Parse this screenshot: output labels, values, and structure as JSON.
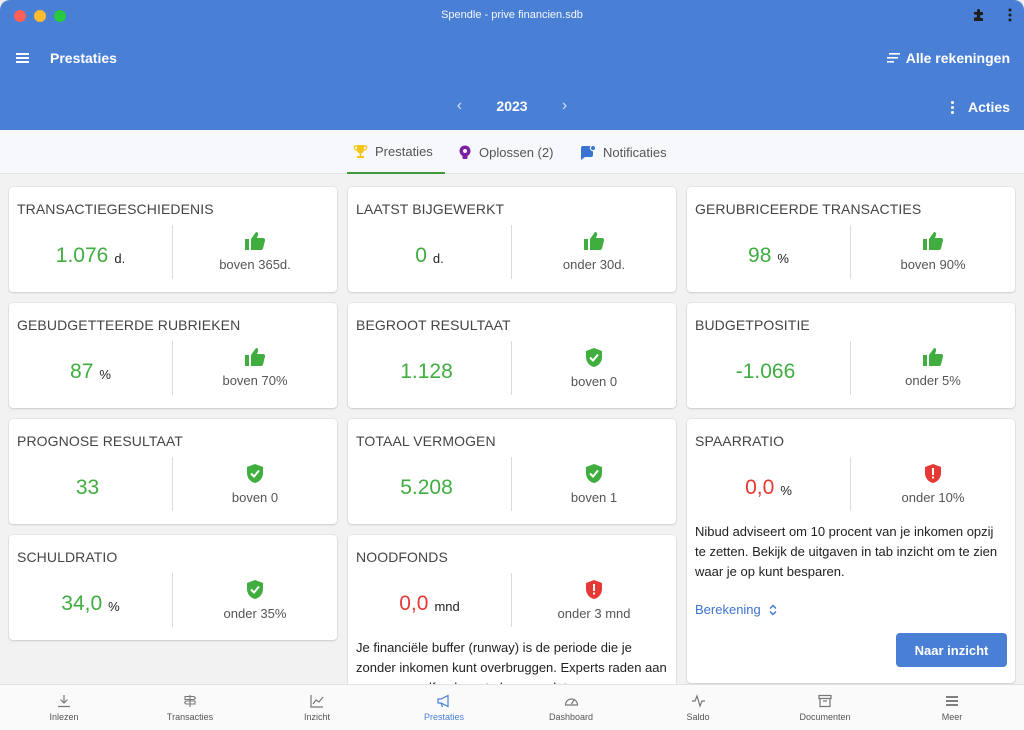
{
  "window": {
    "title": "Spendle - prive financien.sdb"
  },
  "header": {
    "title": "Prestaties",
    "accounts_label": "Alle rekeningen",
    "year": "2023",
    "actions_label": "Acties"
  },
  "tabs": [
    {
      "label": "Prestaties",
      "icon": "trophy-icon",
      "active": true
    },
    {
      "label": "Oplossen (2)",
      "icon": "lightbulb-icon",
      "active": false
    },
    {
      "label": "Notificaties",
      "icon": "notification-icon",
      "active": false
    }
  ],
  "cards": {
    "transactiegeschiedenis": {
      "title": "TRANSACTIEGESCHIEDENIS",
      "value": "1.076",
      "unit": "d.",
      "status": "boven 365d.",
      "icon": "thumbs-up-icon"
    },
    "laatst_bijgewerkt": {
      "title": "LAATST BIJGEWERKT",
      "value": "0",
      "unit": "d.",
      "status": "onder 30d.",
      "icon": "thumbs-up-icon"
    },
    "gerubriceerde": {
      "title": "GERUBRICEERDE TRANSACTIES",
      "value": "98",
      "unit": "%",
      "status": "boven 90%",
      "icon": "thumbs-up-icon"
    },
    "gebudgetteerde": {
      "title": "GEBUDGETTEERDE RUBRIEKEN",
      "value": "87",
      "unit": "%",
      "status": "boven 70%",
      "icon": "thumbs-up-icon"
    },
    "begroot": {
      "title": "BEGROOT RESULTAAT",
      "value": "1.128",
      "unit": "",
      "status": "boven 0",
      "icon": "shield-check-icon"
    },
    "budgetpositie": {
      "title": "BUDGETPOSITIE",
      "value": "-1.066",
      "unit": "",
      "status": "onder 5%",
      "icon": "thumbs-up-icon"
    },
    "prognose": {
      "title": "PROGNOSE RESULTAAT",
      "value": "33",
      "unit": "",
      "status": "boven 0",
      "icon": "shield-check-icon"
    },
    "totaal_vermogen": {
      "title": "TOTAAL VERMOGEN",
      "value": "5.208",
      "unit": "",
      "status": "boven 1",
      "icon": "shield-check-icon"
    },
    "spaarratio": {
      "title": "SPAARRATIO",
      "value": "0,0",
      "unit": "%",
      "status": "onder 10%",
      "icon": "shield-alert-icon",
      "description": "Nibud adviseert om 10 procent van je inkomen opzij te zetten. Bekijk de uitgaven in tab inzicht om te zien waar je op kunt besparen.",
      "link_label": "Berekening",
      "button_label": "Naar inzicht"
    },
    "schuldratio": {
      "title": "SCHULDRATIO",
      "value": "34,0",
      "unit": "%",
      "status": "onder 35%",
      "icon": "shield-check-icon"
    },
    "noodfonds": {
      "title": "NOODFONDS",
      "value": "0,0",
      "unit": "mnd",
      "status": "onder 3 mnd",
      "icon": "shield-alert-icon",
      "description": "Je financiële buffer (runway) is de periode die je zonder inkomen kunt overbruggen. Experts raden aan om een noodfonds op te bouwen dat"
    }
  },
  "bottom_nav": [
    {
      "label": "Inlezen",
      "icon": "download-icon"
    },
    {
      "label": "Transacties",
      "icon": "signpost-icon"
    },
    {
      "label": "Inzicht",
      "icon": "chart-line-icon"
    },
    {
      "label": "Prestaties",
      "icon": "megaphone-icon",
      "active": true
    },
    {
      "label": "Dashboard",
      "icon": "gauge-icon"
    },
    {
      "label": "Saldo",
      "icon": "pulse-icon"
    },
    {
      "label": "Documenten",
      "icon": "archive-icon"
    },
    {
      "label": "Meer",
      "icon": "menu-icon"
    }
  ],
  "colors": {
    "header": "#4a7fd6",
    "positive": "#3fae3f",
    "negative": "#e53935",
    "link": "#3b73d1"
  }
}
